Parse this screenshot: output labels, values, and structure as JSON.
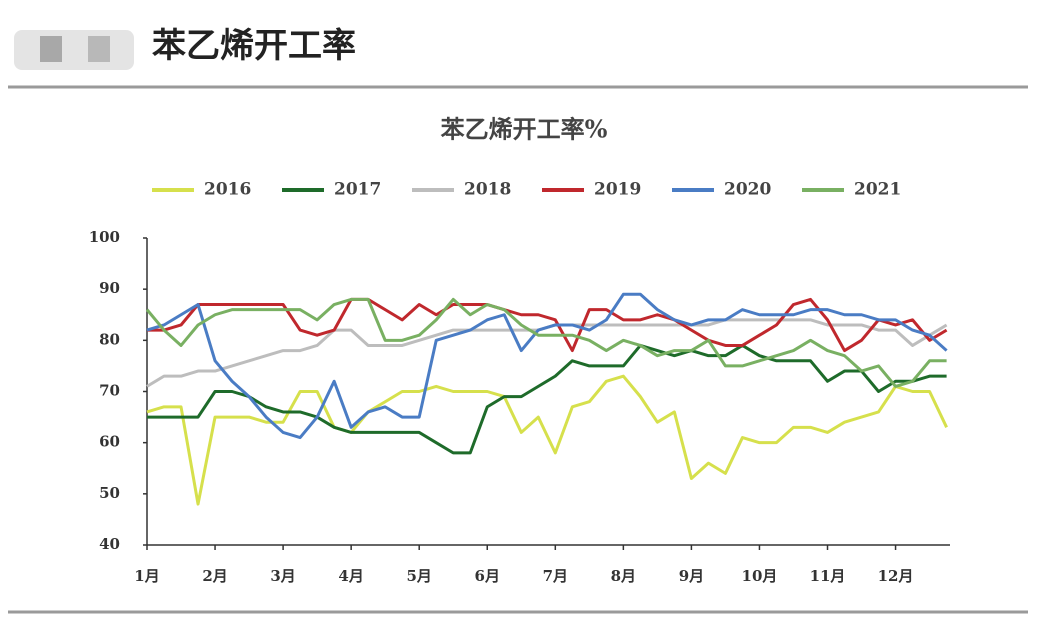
{
  "header": {
    "title": "苯乙烯开工率"
  },
  "chart_data": {
    "type": "line",
    "title": "苯乙烯开工率%",
    "x": [
      1,
      1.25,
      1.5,
      1.75,
      2,
      2.25,
      2.5,
      2.75,
      3,
      3.25,
      3.5,
      3.75,
      4,
      4.25,
      4.5,
      4.75,
      5,
      5.25,
      5.5,
      5.75,
      6,
      6.25,
      6.5,
      6.75,
      7,
      7.25,
      7.5,
      7.75,
      8,
      8.25,
      8.5,
      8.75,
      9,
      9.25,
      9.5,
      9.75,
      10,
      10.25,
      10.5,
      10.75,
      11,
      11.25,
      11.5,
      11.75,
      12,
      12.25,
      12.5,
      12.75
    ],
    "xlim": [
      1,
      12.8
    ],
    "xticks": [
      {
        "value": 1,
        "label": "1月"
      },
      {
        "value": 2,
        "label": "2月"
      },
      {
        "value": 3,
        "label": "3月"
      },
      {
        "value": 4,
        "label": "4月"
      },
      {
        "value": 5,
        "label": "5月"
      },
      {
        "value": 6,
        "label": "6月"
      },
      {
        "value": 7,
        "label": "7月"
      },
      {
        "value": 8,
        "label": "8月"
      },
      {
        "value": 9,
        "label": "9月"
      },
      {
        "value": 10,
        "label": "10月"
      },
      {
        "value": 11,
        "label": "11月"
      },
      {
        "value": 12,
        "label": "12月"
      }
    ],
    "ylim": [
      40,
      100
    ],
    "yticks": [
      40,
      50,
      60,
      70,
      80,
      90,
      100
    ],
    "legend": "top",
    "series": [
      {
        "name": "2016",
        "color": "#d6e04c",
        "values": [
          66,
          67,
          67,
          48,
          65,
          65,
          65,
          64,
          64,
          70,
          70,
          63,
          62,
          66,
          68,
          70,
          70,
          71,
          70,
          70,
          70,
          69,
          62,
          65,
          58,
          67,
          68,
          72,
          73,
          69,
          64,
          66,
          53,
          56,
          54,
          61,
          60,
          60,
          63,
          63,
          62,
          64,
          65,
          66,
          71,
          70,
          70,
          63
        ]
      },
      {
        "name": "2017",
        "color": "#1e6b2a",
        "values": [
          65,
          65,
          65,
          65,
          70,
          70,
          69,
          67,
          66,
          66,
          65,
          63,
          62,
          62,
          62,
          62,
          62,
          60,
          58,
          58,
          67,
          69,
          69,
          71,
          73,
          76,
          75,
          75,
          75,
          79,
          78,
          77,
          78,
          77,
          77,
          79,
          77,
          76,
          76,
          76,
          72,
          74,
          74,
          70,
          72,
          72,
          73,
          73
        ]
      },
      {
        "name": "2018",
        "color": "#bdbdbd",
        "values": [
          71,
          73,
          73,
          74,
          74,
          75,
          76,
          77,
          78,
          78,
          79,
          82,
          82,
          79,
          79,
          79,
          80,
          81,
          82,
          82,
          82,
          82,
          82,
          82,
          83,
          83,
          83,
          83,
          83,
          83,
          83,
          83,
          83,
          83,
          84,
          84,
          84,
          84,
          84,
          84,
          83,
          83,
          83,
          82,
          82,
          79,
          81,
          83
        ]
      },
      {
        "name": "2019",
        "color": "#c0282d",
        "values": [
          82,
          82,
          83,
          87,
          87,
          87,
          87,
          87,
          87,
          82,
          81,
          82,
          88,
          88,
          86,
          84,
          87,
          85,
          87,
          87,
          87,
          86,
          85,
          85,
          84,
          78,
          86,
          86,
          84,
          84,
          85,
          84,
          82,
          80,
          79,
          79,
          81,
          83,
          87,
          88,
          84,
          78,
          80,
          84,
          83,
          84,
          80,
          82
        ]
      },
      {
        "name": "2020",
        "color": "#4a7cc4",
        "values": [
          82,
          83,
          85,
          87,
          76,
          72,
          69,
          65,
          62,
          61,
          65,
          72,
          63,
          66,
          67,
          65,
          65,
          80,
          81,
          82,
          84,
          85,
          78,
          82,
          83,
          83,
          82,
          84,
          89,
          89,
          86,
          84,
          83,
          84,
          84,
          86,
          85,
          85,
          85,
          86,
          86,
          85,
          85,
          84,
          84,
          82,
          81,
          78
        ]
      },
      {
        "name": "2021",
        "color": "#79b062",
        "values": [
          86,
          82,
          79,
          83,
          85,
          86,
          86,
          86,
          86,
          86,
          84,
          87,
          88,
          88,
          80,
          80,
          81,
          84,
          88,
          85,
          87,
          86,
          83,
          81,
          81,
          81,
          80,
          78,
          80,
          79,
          77,
          78,
          78,
          80,
          75,
          75,
          76,
          77,
          78,
          80,
          78,
          77,
          74,
          75,
          71,
          72,
          76,
          76
        ]
      }
    ]
  }
}
